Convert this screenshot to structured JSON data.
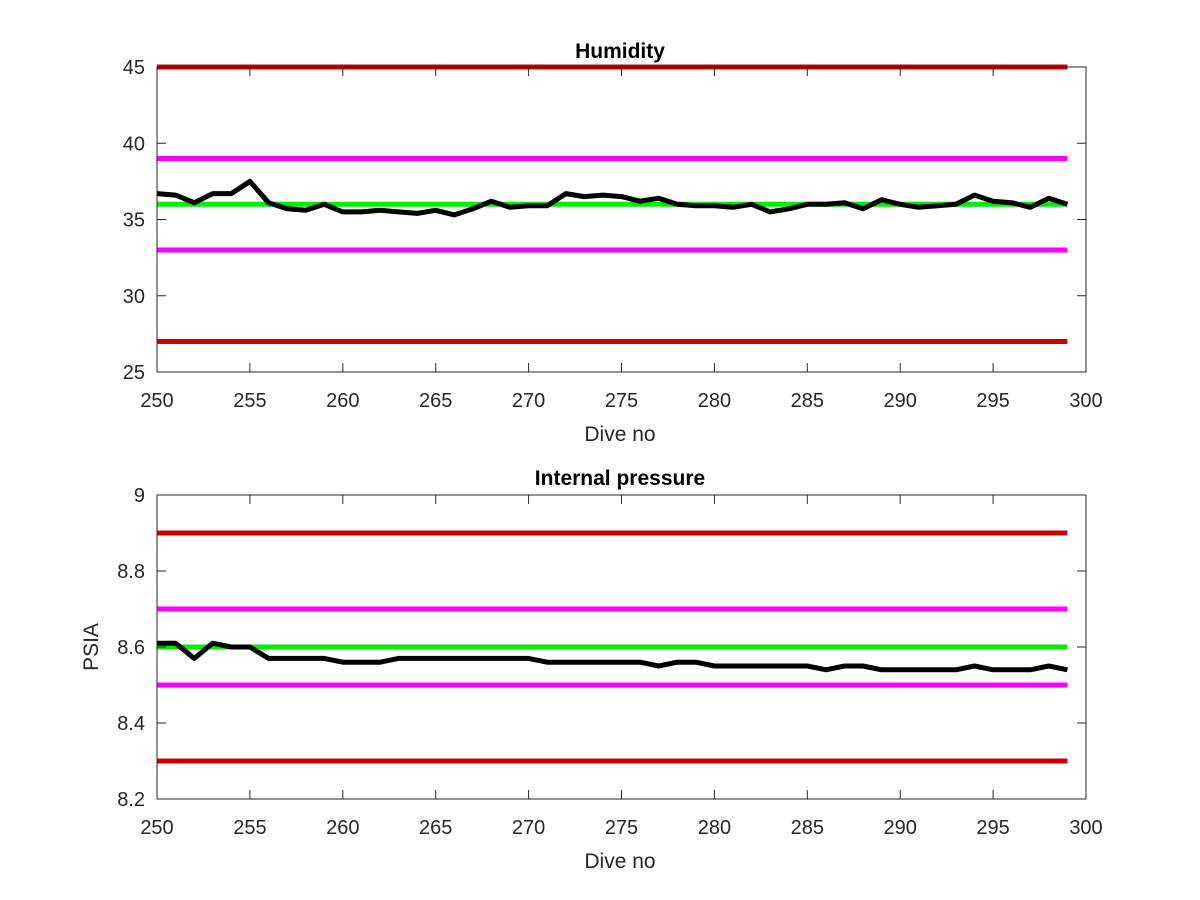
{
  "figure": {
    "background": "#ffffff",
    "line_colors": {
      "data": "#000000",
      "outer_limit": "#cc0000",
      "inner_limit": "#ff00ff",
      "target": "#00ee00"
    }
  },
  "chart_data": [
    {
      "type": "line",
      "title": "Humidity",
      "xlabel": "Dive no",
      "ylabel": "",
      "xlim": [
        250,
        300
      ],
      "ylim": [
        25,
        45
      ],
      "xticks": [
        250,
        255,
        260,
        265,
        270,
        275,
        280,
        285,
        290,
        295,
        300
      ],
      "yticks": [
        25,
        30,
        35,
        40,
        45
      ],
      "grid": false,
      "legend": "none",
      "reference_lines": [
        {
          "role": "outer-upper-limit",
          "y": 45,
          "x": [
            250,
            299
          ],
          "color": "#cc0000"
        },
        {
          "role": "inner-upper-limit",
          "y": 39,
          "x": [
            250,
            299
          ],
          "color": "#ff00ff"
        },
        {
          "role": "target",
          "y": 36,
          "x": [
            250,
            299
          ],
          "color": "#00ee00"
        },
        {
          "role": "inner-lower-limit",
          "y": 33,
          "x": [
            250,
            299
          ],
          "color": "#ff00ff"
        },
        {
          "role": "outer-lower-limit",
          "y": 27,
          "x": [
            250,
            299
          ],
          "color": "#cc0000"
        }
      ],
      "series": [
        {
          "color": "#000000",
          "x": [
            250,
            251,
            252,
            253,
            254,
            255,
            256,
            257,
            258,
            259,
            260,
            261,
            262,
            263,
            264,
            265,
            266,
            267,
            268,
            269,
            270,
            271,
            272,
            273,
            274,
            275,
            276,
            277,
            278,
            279,
            280,
            281,
            282,
            283,
            284,
            285,
            286,
            287,
            288,
            289,
            290,
            291,
            292,
            293,
            294,
            295,
            296,
            297,
            298,
            299
          ],
          "values": [
            36.7,
            36.6,
            36.1,
            36.7,
            36.7,
            37.5,
            36.1,
            35.7,
            35.6,
            36.0,
            35.5,
            35.5,
            35.6,
            35.5,
            35.4,
            35.6,
            35.3,
            35.7,
            36.2,
            35.8,
            35.9,
            35.9,
            36.7,
            36.5,
            36.6,
            36.5,
            36.2,
            36.4,
            36.0,
            35.9,
            35.9,
            35.8,
            36.0,
            35.5,
            35.7,
            36.0,
            36.0,
            36.1,
            35.7,
            36.3,
            36.0,
            35.8,
            35.9,
            36.0,
            36.6,
            36.2,
            36.1,
            35.8,
            36.4,
            36.0
          ]
        }
      ]
    },
    {
      "type": "line",
      "title": "Internal pressure",
      "xlabel": "Dive no",
      "ylabel": "PSIA",
      "xlim": [
        250,
        300
      ],
      "ylim": [
        8.2,
        9.0
      ],
      "xticks": [
        250,
        255,
        260,
        265,
        270,
        275,
        280,
        285,
        290,
        295,
        300
      ],
      "yticks": [
        8.2,
        8.4,
        8.6,
        8.8,
        9
      ],
      "grid": false,
      "legend": "none",
      "reference_lines": [
        {
          "role": "outer-upper-limit",
          "y": 8.9,
          "x": [
            250,
            299
          ],
          "color": "#cc0000"
        },
        {
          "role": "inner-upper-limit",
          "y": 8.7,
          "x": [
            250,
            299
          ],
          "color": "#ff00ff"
        },
        {
          "role": "target",
          "y": 8.6,
          "x": [
            250,
            299
          ],
          "color": "#00ee00"
        },
        {
          "role": "inner-lower-limit",
          "y": 8.5,
          "x": [
            250,
            299
          ],
          "color": "#ff00ff"
        },
        {
          "role": "outer-lower-limit",
          "y": 8.3,
          "x": [
            250,
            299
          ],
          "color": "#cc0000"
        }
      ],
      "series": [
        {
          "color": "#000000",
          "x": [
            250,
            251,
            252,
            253,
            254,
            255,
            256,
            257,
            258,
            259,
            260,
            261,
            262,
            263,
            264,
            265,
            266,
            267,
            268,
            269,
            270,
            271,
            272,
            273,
            274,
            275,
            276,
            277,
            278,
            279,
            280,
            281,
            282,
            283,
            284,
            285,
            286,
            287,
            288,
            289,
            290,
            291,
            292,
            293,
            294,
            295,
            296,
            297,
            298,
            299
          ],
          "values": [
            8.61,
            8.61,
            8.57,
            8.61,
            8.6,
            8.6,
            8.57,
            8.57,
            8.57,
            8.57,
            8.56,
            8.56,
            8.56,
            8.57,
            8.57,
            8.57,
            8.57,
            8.57,
            8.57,
            8.57,
            8.57,
            8.56,
            8.56,
            8.56,
            8.56,
            8.56,
            8.56,
            8.55,
            8.56,
            8.56,
            8.55,
            8.55,
            8.55,
            8.55,
            8.55,
            8.55,
            8.54,
            8.55,
            8.55,
            8.54,
            8.54,
            8.54,
            8.54,
            8.54,
            8.55,
            8.54,
            8.54,
            8.54,
            8.55,
            8.54
          ]
        }
      ]
    }
  ]
}
